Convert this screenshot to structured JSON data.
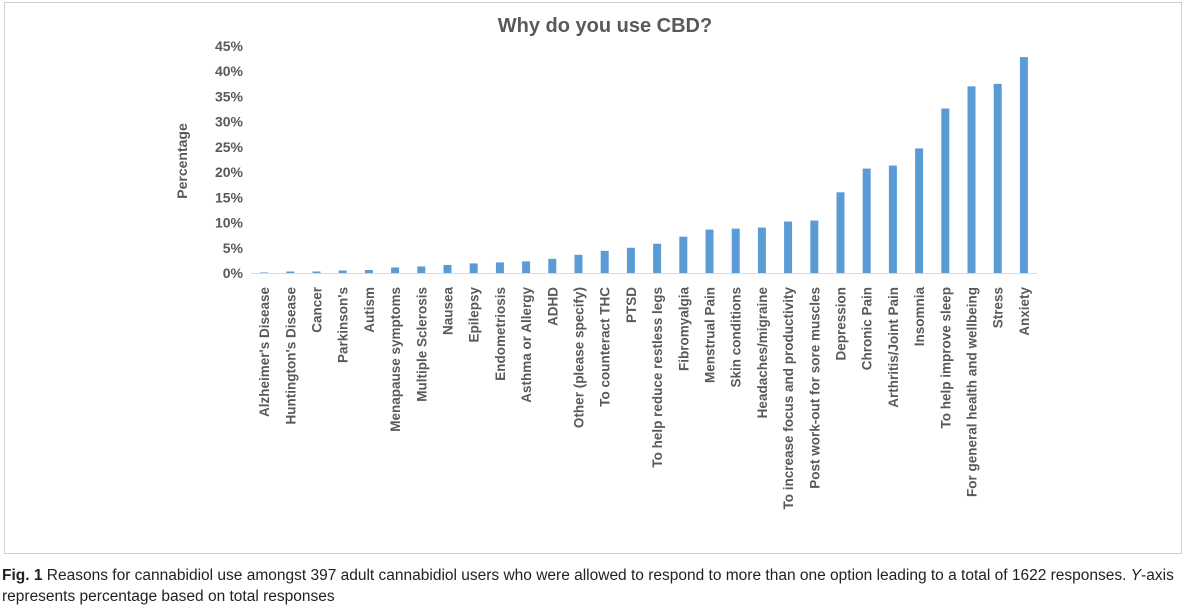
{
  "chart_data": {
    "type": "bar",
    "title": "Why do you use CBD?",
    "xlabel": "",
    "ylabel": "Percentage",
    "ylim": [
      0,
      45
    ],
    "yticks": [
      "0%",
      "5%",
      "10%",
      "15%",
      "20%",
      "25%",
      "30%",
      "35%",
      "40%",
      "45%"
    ],
    "grid": false,
    "bar_color": "#5b9bd5",
    "categories": [
      "Alzheimer's Disease",
      "Huntington's Disease",
      "Cancer",
      "Parkinson's",
      "Autism",
      "Menapause symptoms",
      "Multiple Sclerosis",
      "Nausea",
      "Epilepsy",
      "Endometriosis",
      "Asthma or Allergy",
      "ADHD",
      "Other (please specify)",
      "To counteract THC",
      "PTSD",
      "To help reduce restless legs",
      "Fibromyalgia",
      "Menstrual Pain",
      "Skin conditions",
      "Headaches/migraine",
      "To increase focus and productivity",
      "Post work-out for sore muscles",
      "Depression",
      "Chronic Pain",
      "Arthritis/Joint Pain",
      "Insomnia",
      "To help improve sleep",
      "For general health and wellbeing",
      "Stress",
      "Anxiety"
    ],
    "values": [
      0.1,
      0.3,
      0.3,
      0.5,
      0.6,
      1.1,
      1.3,
      1.6,
      1.9,
      2.1,
      2.3,
      2.8,
      3.6,
      4.4,
      5.0,
      5.8,
      7.2,
      8.6,
      8.8,
      9.0,
      10.2,
      10.4,
      16.0,
      20.7,
      21.3,
      24.7,
      32.6,
      37.0,
      37.5,
      42.8
    ]
  },
  "caption": {
    "label": "Fig. 1",
    "text_part1": " Reasons for cannabidiol use amongst 397 adult cannabidiol users who were allowed to respond to more than one option leading to a total of 1622 responses. ",
    "y_italic": "Y",
    "text_part2": "-axis represents percentage based on total responses"
  }
}
